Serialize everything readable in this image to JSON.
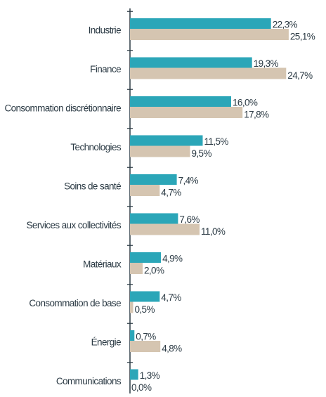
{
  "chart_data": {
    "type": "bar",
    "orientation": "horizontal",
    "categories": [
      "Industrie",
      "Finance",
      "Consommation discrétionnaire",
      "Technologies",
      "Soins de santé",
      "Services aux collectivités",
      "Matériaux",
      "Consommation de base",
      "Énergie",
      "Communications"
    ],
    "series": [
      {
        "color": "#2ba6b8",
        "values": [
          22.3,
          19.3,
          16.0,
          11.5,
          7.4,
          7.6,
          4.9,
          4.7,
          0.7,
          1.3
        ],
        "value_labels": [
          "22,3%",
          "19,3%",
          "16,0%",
          "11,5%",
          "7,4%",
          "7,6%",
          "4,9%",
          "4,7%",
          "0,7%",
          "1,3%"
        ]
      },
      {
        "color": "#d5c5b1",
        "values": [
          25.1,
          24.7,
          17.8,
          9.5,
          4.7,
          11.0,
          2.0,
          0.5,
          4.8,
          0.0
        ],
        "value_labels": [
          "25,1%",
          "24,7%",
          "17,8%",
          "9,5%",
          "4,7%",
          "11,0%",
          "2,0%",
          "0,5%",
          "4,8%",
          "0,0%"
        ]
      }
    ],
    "xlim": [
      0,
      30
    ]
  }
}
